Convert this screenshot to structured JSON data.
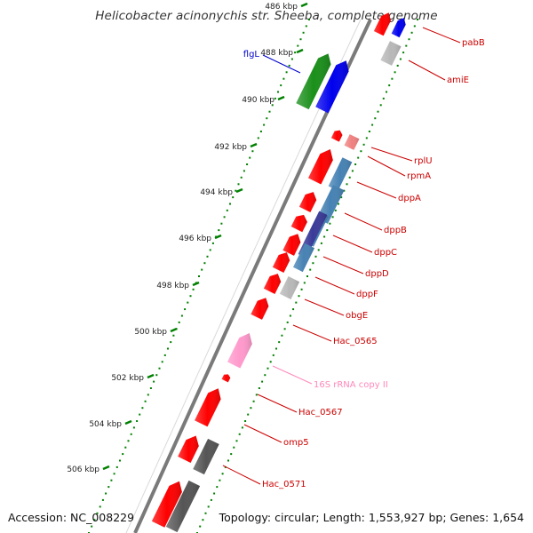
{
  "title": "Helicobacter acinonychis str. Sheeba, complete genome",
  "footer": {
    "accession": "Accession: NC_008229",
    "summary": "Topology: circular; Length: 1,553,927 bp; Genes: 1,654"
  },
  "colors": {
    "cds": "#ff0000",
    "rrna": "#ff99cc",
    "flagellar_green": "#1a8f1a",
    "flagellar_blue": "#0000ee",
    "transport_steel": "#4682b4",
    "transport_navy": "#3a3a99",
    "pale_red": "#f08080",
    "grey": "#b8b8b8",
    "dark_grey": "#555555",
    "backbone": "#777777",
    "tick": "#008000",
    "label_red": "#cc0000",
    "label_blue": "#0000cc",
    "label_pink": "#ff88bb"
  },
  "kbp_labels": [
    "486 kbp",
    "488 kbp",
    "490 kbp",
    "492 kbp",
    "494 kbp",
    "496 kbp",
    "498 kbp",
    "500 kbp",
    "502 kbp",
    "504 kbp",
    "506 kbp"
  ],
  "gene_labels": [
    "pabB",
    "amiE",
    "flgL",
    "rplU",
    "rpmA",
    "dppA",
    "dppB",
    "dppC",
    "dppD",
    "dppF",
    "obgE",
    "Hac_0565",
    "16S rRNA copy II",
    "Hac_0567",
    "omp5",
    "Hac_0571"
  ]
}
